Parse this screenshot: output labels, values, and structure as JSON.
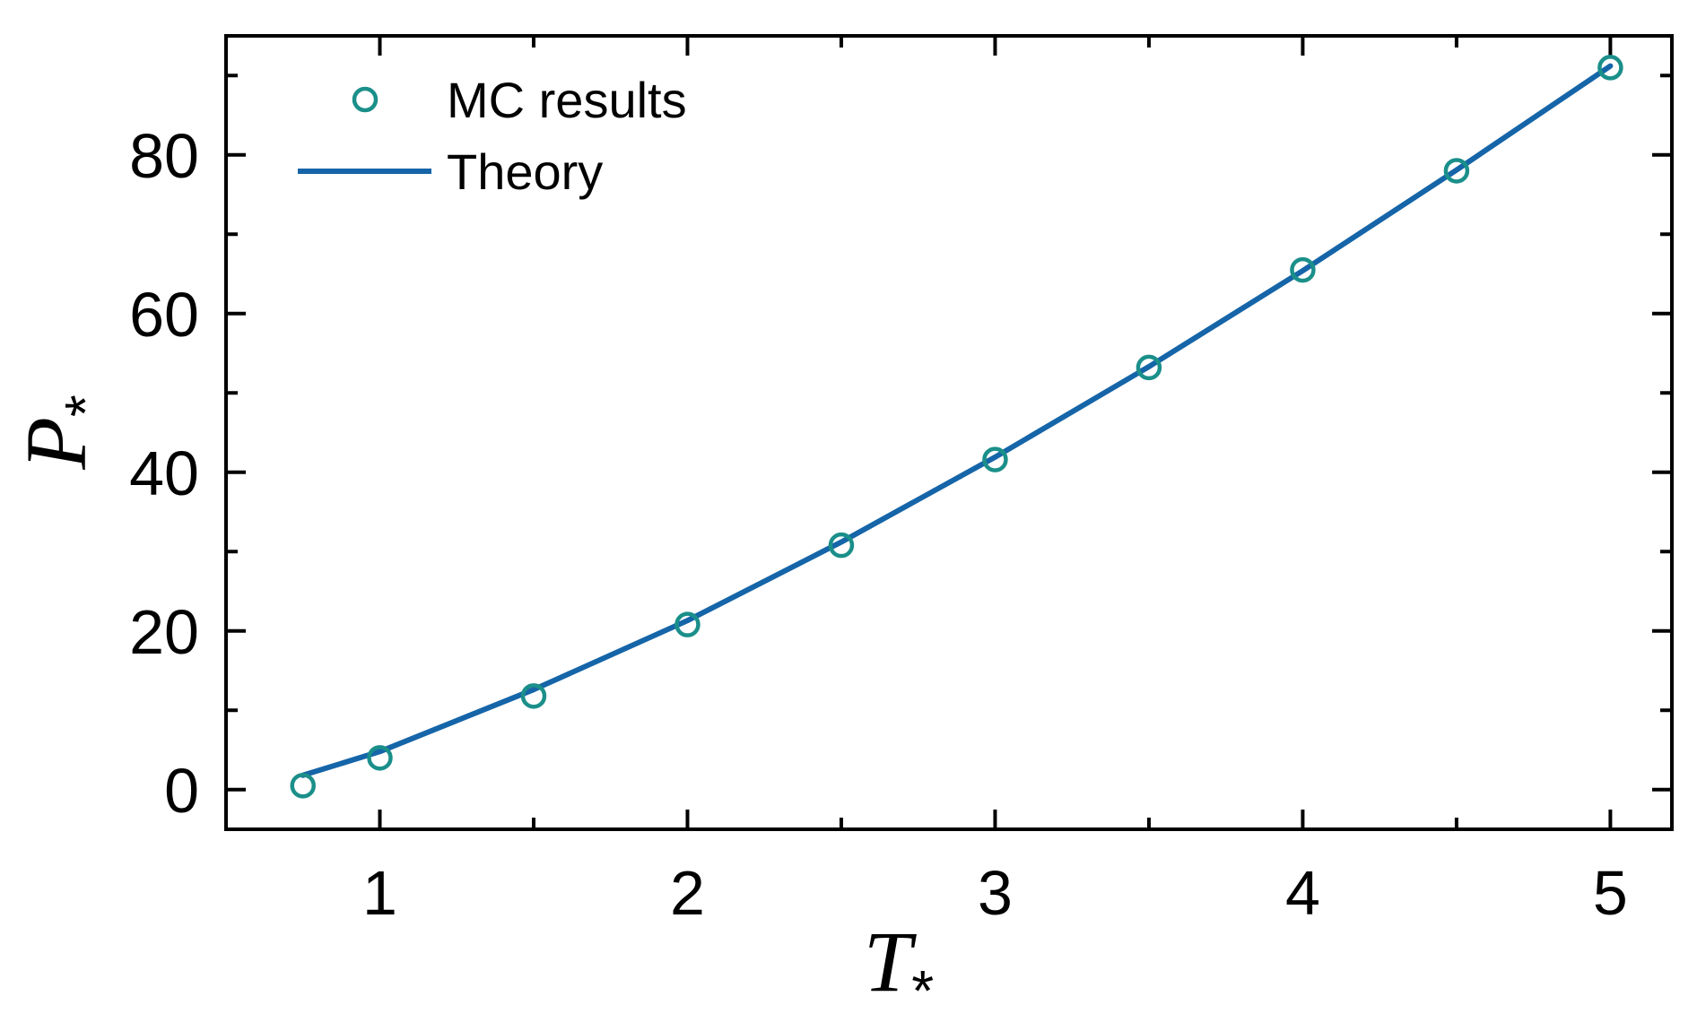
{
  "chart_data": {
    "type": "line+scatter",
    "xlabel": {
      "main": "T",
      "sub": "*"
    },
    "ylabel": {
      "main": "P",
      "sub": "*"
    },
    "xlim": [
      0.5,
      5.2
    ],
    "ylim": [
      -5,
      95
    ],
    "xticks": [
      1,
      2,
      3,
      4,
      5
    ],
    "xtick_labels": [
      "1",
      "2",
      "3",
      "4",
      "5"
    ],
    "xminor": [
      1.5,
      2.5,
      3.5,
      4.5
    ],
    "yticks": [
      0,
      20,
      40,
      60,
      80
    ],
    "ytick_labels": [
      "0",
      "20",
      "40",
      "60",
      "80"
    ],
    "yminor": [
      10,
      30,
      50,
      70,
      90
    ],
    "legend_position": "top-left",
    "series": [
      {
        "name": "MC results",
        "kind": "scatter",
        "marker": "open-circle",
        "color": "#1b8f8a",
        "x": [
          0.75,
          1.0,
          1.5,
          2.0,
          2.5,
          3.0,
          3.5,
          4.0,
          4.5,
          5.0
        ],
        "y": [
          0.5,
          4.0,
          11.8,
          20.8,
          30.8,
          41.6,
          53.2,
          65.5,
          78.0,
          91.0
        ]
      },
      {
        "name": "Theory",
        "kind": "line",
        "color": "#1565a8",
        "x": [
          0.75,
          1.0,
          1.5,
          2.0,
          2.5,
          3.0,
          3.5,
          4.0,
          4.5,
          5.0
        ],
        "y": [
          1.8,
          4.8,
          12.6,
          21.3,
          31.2,
          41.9,
          53.3,
          65.4,
          78.1,
          91.2
        ]
      }
    ]
  }
}
